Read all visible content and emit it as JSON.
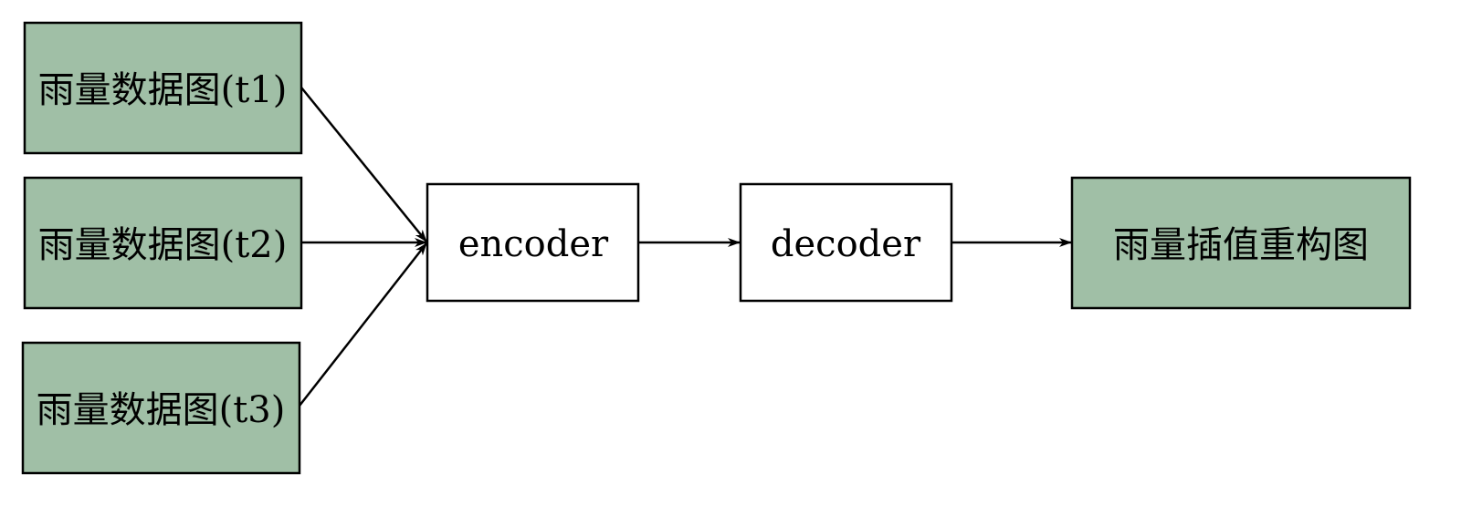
{
  "colors": {
    "input_fill": "#a0bfa6",
    "output_fill": "#a0bfa6",
    "model_fill": "#ffffff",
    "stroke": "#000000"
  },
  "inputs": [
    {
      "label": "雨量数据图(t1)"
    },
    {
      "label": "雨量数据图(t2)"
    },
    {
      "label": "雨量数据图(t3)"
    }
  ],
  "encoder": {
    "label": "encoder"
  },
  "decoder": {
    "label": "decoder"
  },
  "output": {
    "label": "雨量插值重构图"
  }
}
